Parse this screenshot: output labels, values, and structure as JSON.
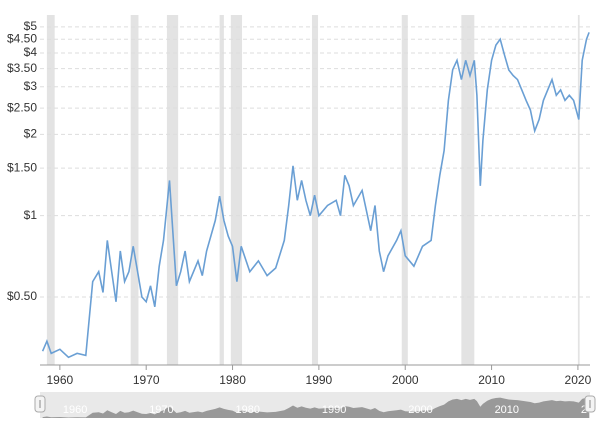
{
  "chart_data": {
    "type": "line",
    "log_y": true,
    "grid": true,
    "color": "#6a9fd4",
    "recession_color": "#e3e3e3",
    "x": [
      1958.0,
      1958.5,
      1959,
      1960,
      1961,
      1962,
      1963,
      1963.8,
      1964.5,
      1965,
      1965.5,
      1966,
      1966.5,
      1967,
      1967.5,
      1968,
      1968.5,
      1969,
      1969.5,
      1970,
      1970.5,
      1971,
      1971.5,
      1972,
      1972.7,
      1973,
      1973.5,
      1974,
      1974.5,
      1975,
      1976,
      1976.5,
      1977,
      1978,
      1978.5,
      1979,
      1979.5,
      1980,
      1980.5,
      1981,
      1982,
      1983,
      1984,
      1985,
      1986,
      1986.5,
      1987,
      1987.5,
      1988,
      1988.5,
      1989,
      1989.5,
      1990,
      1991,
      1992,
      1992.5,
      1993,
      1993.5,
      1994,
      1995,
      1996,
      1996.5,
      1997,
      1997.5,
      1998,
      1999,
      1999.5,
      2000,
      2001,
      2002,
      2003,
      2003.5,
      2004,
      2004.5,
      2005,
      2005.5,
      2006,
      2006.5,
      2007,
      2007.5,
      2008,
      2008.3,
      2008.7,
      2009,
      2009.5,
      2010,
      2010.5,
      2011,
      2011.5,
      2012,
      2012.5,
      2013,
      2013.5,
      2014,
      2014.5,
      2015,
      2015.5,
      2016,
      2016.5,
      2017,
      2017.5,
      2018,
      2018.5,
      2019,
      2019.5,
      2020.1,
      2020.5,
      2021,
      2021.3
    ],
    "values": [
      0.315,
      0.343,
      0.309,
      0.32,
      0.299,
      0.309,
      0.304,
      0.57,
      0.62,
      0.52,
      0.81,
      0.62,
      0.48,
      0.74,
      0.57,
      0.62,
      0.77,
      0.62,
      0.5,
      0.48,
      0.55,
      0.46,
      0.65,
      0.81,
      1.35,
      0.96,
      0.55,
      0.62,
      0.74,
      0.57,
      0.68,
      0.6,
      0.74,
      0.96,
      1.18,
      0.96,
      0.84,
      0.77,
      0.57,
      0.77,
      0.62,
      0.68,
      0.6,
      0.64,
      0.81,
      1.09,
      1.53,
      1.14,
      1.35,
      1.14,
      1.0,
      1.19,
      1.0,
      1.09,
      1.14,
      1.0,
      1.41,
      1.29,
      1.09,
      1.24,
      0.88,
      1.09,
      0.74,
      0.62,
      0.71,
      0.81,
      0.88,
      0.71,
      0.65,
      0.77,
      0.81,
      1.09,
      1.41,
      1.74,
      2.67,
      3.47,
      3.76,
      3.19,
      3.76,
      3.3,
      3.76,
      2.79,
      1.29,
      1.9,
      2.92,
      3.76,
      4.28,
      4.5,
      3.93,
      3.46,
      3.3,
      3.19,
      2.92,
      2.67,
      2.46,
      2.06,
      2.27,
      2.67,
      2.92,
      3.19,
      2.79,
      2.92,
      2.67,
      2.79,
      2.67,
      2.27,
      3.76,
      4.5,
      4.77
    ],
    "recessions": [
      [
        1958.5,
        1959.4
      ],
      [
        1968.2,
        1969.1
      ],
      [
        1972.4,
        1973.7
      ],
      [
        1978.5,
        1979.0
      ],
      [
        1979.8,
        1981.1
      ],
      [
        1989.2,
        1989.9
      ],
      [
        1999.6,
        2000.3
      ],
      [
        2006.5,
        2008.0
      ],
      [
        2020.0,
        2020.2
      ]
    ],
    "xlim": [
      1957.7,
      2021.4
    ],
    "xticks": [
      1960,
      1970,
      1980,
      1990,
      2000,
      2010,
      2020
    ],
    "ylim": [
      0.28,
      5.3
    ],
    "yticks": [
      {
        "value": 0.5,
        "label": "$0.50"
      },
      {
        "value": 1,
        "label": "$1"
      },
      {
        "value": 1.5,
        "label": "$1.50"
      },
      {
        "value": 2,
        "label": "$2"
      },
      {
        "value": 2.5,
        "label": "$2.50"
      },
      {
        "value": 3,
        "label": "$3"
      },
      {
        "value": 3.5,
        "label": "$3.50"
      },
      {
        "value": 4,
        "label": "$4"
      },
      {
        "value": 4.5,
        "label": "$4.50"
      },
      {
        "value": 5,
        "label": "$5"
      }
    ]
  }
}
